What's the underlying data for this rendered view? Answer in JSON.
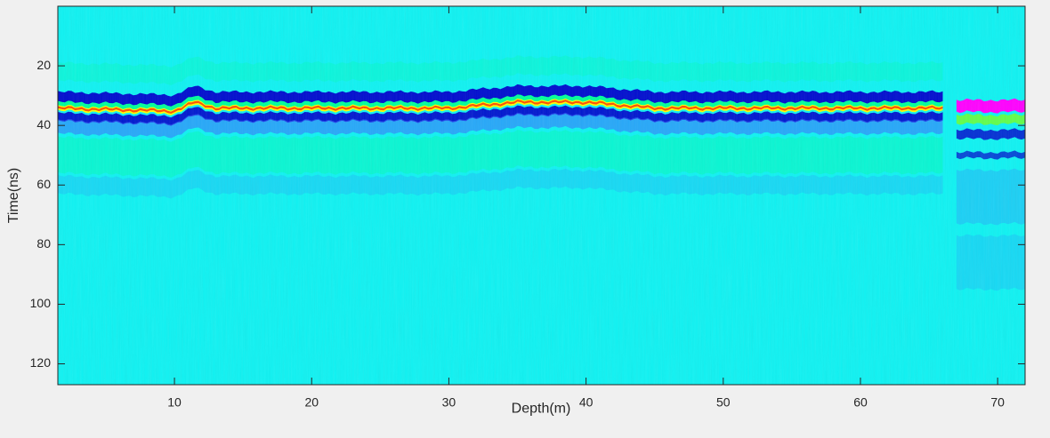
{
  "chart_data": {
    "type": "heatmap",
    "title": "",
    "xlabel": "Depth(m)",
    "ylabel": "Time(ns)",
    "xlim": [
      1.5,
      72
    ],
    "ylim": [
      0,
      127
    ],
    "y_reversed": true,
    "x_ticks": [
      10,
      20,
      30,
      40,
      50,
      60,
      70
    ],
    "y_ticks": [
      20,
      40,
      60,
      80,
      100,
      120
    ],
    "grid": false,
    "colormap": [
      "#00bfff",
      "#00e5ff",
      "#00ff9a",
      "#6aff3a",
      "#ffff00",
      "#ff3300",
      "#ff00ff",
      "#0000cc",
      "#3a6bff",
      "#00ccff"
    ],
    "background_color": "#0ff2f2",
    "reflector_layers": [
      {
        "depth": [
          1.5,
          10,
          11.5,
          13,
          20,
          30,
          35,
          40,
          45,
          50,
          60,
          66
        ],
        "time": [
          34,
          35,
          32,
          34,
          34,
          34,
          32,
          32,
          34,
          34,
          34,
          34
        ]
      },
      {
        "depth": [
          67,
          72
        ],
        "time": [
          34,
          34
        ]
      }
    ]
  }
}
